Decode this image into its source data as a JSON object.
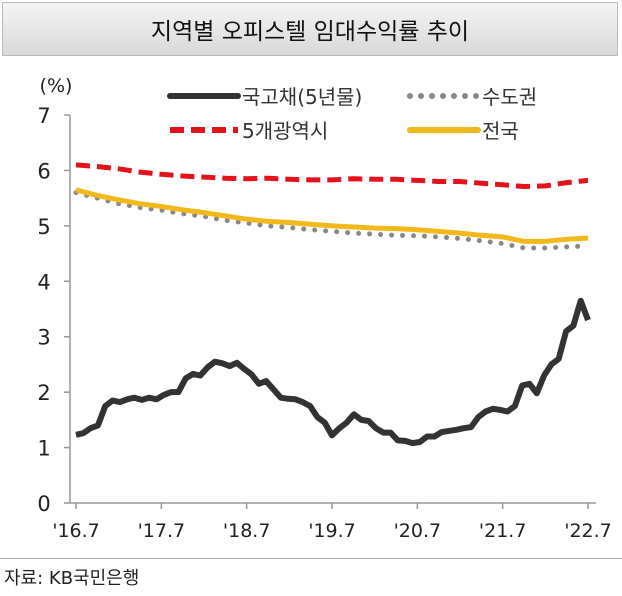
{
  "chart_data": {
    "type": "line",
    "title": "지역별 오피스텔 임대수익률 추이",
    "ylabel": "(%)",
    "xlabel": "",
    "ylim": [
      0,
      7
    ],
    "yticks": [
      "0",
      "1",
      "2",
      "3",
      "4",
      "5",
      "6",
      "7"
    ],
    "xticks": [
      "'16.7",
      "'17.7",
      "'18.7",
      "'19.7",
      "'20.7",
      "'21.7",
      "'22.7"
    ],
    "x_range": [
      "2016-07",
      "2022-07"
    ],
    "legend_position": "top",
    "series": [
      {
        "name": "국고채(5년물)",
        "color": "#333333",
        "style": "solid",
        "values": [
          1.23,
          1.26,
          1.35,
          1.4,
          1.75,
          1.85,
          1.82,
          1.87,
          1.9,
          1.86,
          1.9,
          1.87,
          1.95,
          2.0,
          2.0,
          2.25,
          2.33,
          2.3,
          2.45,
          2.55,
          2.52,
          2.47,
          2.53,
          2.42,
          2.32,
          2.15,
          2.2,
          2.05,
          1.9,
          1.88,
          1.87,
          1.82,
          1.75,
          1.55,
          1.45,
          1.22,
          1.35,
          1.45,
          1.6,
          1.5,
          1.48,
          1.35,
          1.27,
          1.27,
          1.13,
          1.12,
          1.08,
          1.1,
          1.2,
          1.2,
          1.28,
          1.3,
          1.32,
          1.35,
          1.37,
          1.55,
          1.65,
          1.7,
          1.68,
          1.65,
          1.75,
          2.12,
          2.15,
          1.98,
          2.3,
          2.5,
          2.6,
          3.1,
          3.2,
          3.65,
          3.3
        ]
      },
      {
        "name": "수도권",
        "color": "#888888",
        "style": "dotted",
        "values": [
          5.6,
          5.5,
          5.4,
          5.33,
          5.28,
          5.22,
          5.17,
          5.1,
          5.05,
          5.0,
          4.97,
          4.93,
          4.9,
          4.87,
          4.85,
          4.83,
          4.82,
          4.8,
          4.77,
          4.73,
          4.68,
          4.6,
          4.6,
          4.62,
          4.64
        ]
      },
      {
        "name": "5개광역시",
        "color": "#e3121b",
        "style": "dashed",
        "values": [
          6.1,
          6.07,
          6.03,
          5.97,
          5.93,
          5.9,
          5.88,
          5.86,
          5.85,
          5.86,
          5.84,
          5.83,
          5.83,
          5.85,
          5.84,
          5.84,
          5.82,
          5.8,
          5.8,
          5.77,
          5.74,
          5.71,
          5.72,
          5.78,
          5.82
        ]
      },
      {
        "name": "전국",
        "color": "#f2b91c",
        "style": "solid",
        "values": [
          5.65,
          5.55,
          5.47,
          5.4,
          5.35,
          5.29,
          5.24,
          5.18,
          5.12,
          5.08,
          5.06,
          5.03,
          5.0,
          4.98,
          4.96,
          4.95,
          4.93,
          4.9,
          4.87,
          4.83,
          4.8,
          4.72,
          4.72,
          4.76,
          4.78
        ]
      }
    ]
  },
  "source": "자료: KB국민은행"
}
